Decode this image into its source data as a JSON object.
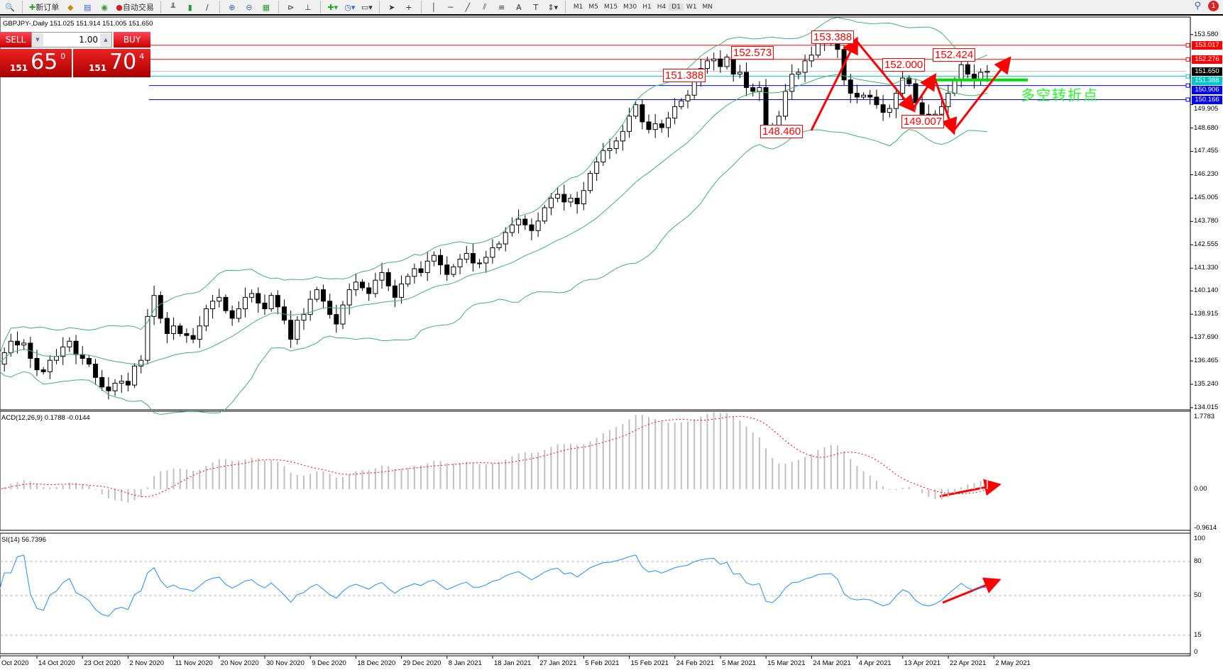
{
  "toolbar": {
    "new_order": "新订单",
    "auto_trading": "自动交易",
    "timeframes": [
      "M1",
      "M5",
      "M15",
      "M30",
      "H1",
      "H4",
      "D1",
      "W1",
      "MN"
    ],
    "active_timeframe": "D1",
    "notification_count": "1"
  },
  "chart_info": {
    "text": "GBPJPY-,Daily  151.025 151.914 151.005 151.650"
  },
  "one_click": {
    "sell_label": "SELL",
    "buy_label": "BUY",
    "lot": "1.00",
    "sell_big": "151",
    "sell_main": "65",
    "sell_sup": "0",
    "buy_big": "151",
    "buy_main": "70",
    "buy_sup": "4"
  },
  "price_axis": [
    "153.580",
    "149.905",
    "148.680",
    "147.455",
    "146.230",
    "145.005",
    "143.780",
    "142.555",
    "141.330",
    "140.140",
    "138.915",
    "137.690",
    "136.465",
    "135.240",
    "134.015"
  ],
  "price_lines": [
    {
      "price": 153.017,
      "label": "153.017",
      "color": "#ff0000"
    },
    {
      "price": 152.276,
      "label": "152.276",
      "color": "#ff0000"
    },
    {
      "price": 151.65,
      "label": "151.650",
      "color": "#000000",
      "line": "#c0c0c0"
    },
    {
      "price": 151.388,
      "label": "151.388",
      "color": "#00c8c8"
    },
    {
      "price": 150.906,
      "label": "150.906",
      "color": "#0000ff"
    },
    {
      "price": 150.166,
      "label": "150.166",
      "color": "#0000ff"
    }
  ],
  "annotations": [
    "153.388",
    "152.573",
    "151.388",
    "148.460",
    "152.000",
    "152.424",
    "149.007"
  ],
  "annotation_text": "多空转折点",
  "colors": {
    "bands": "#3cb371",
    "arrow": "#ff0000",
    "support": "#00e000",
    "macd_hist": "#c0c0c0",
    "macd_signal": "#ff0000",
    "rsi": "#1e90ff"
  },
  "macd": {
    "label": "ACD(12,26,9) 0.1788 -0.0144",
    "axis": [
      "1.7783",
      "0.00",
      "-0.9614"
    ]
  },
  "rsi": {
    "label": "SI(14) 56.7396",
    "axis": [
      "100",
      "80",
      "50",
      "15",
      "0"
    ]
  },
  "dates": [
    "Oct 2020",
    "14 Oct 2020",
    "23 Oct 2020",
    "2 Nov 2020",
    "11 Nov 2020",
    "20 Nov 2020",
    "30 Nov 2020",
    "9 Dec 2020",
    "18 Dec 2020",
    "29 Dec 2020",
    "8 Jan 2021",
    "18 Jan 2021",
    "27 Jan 2021",
    "5 Feb 2021",
    "15 Feb 2021",
    "24 Feb 2021",
    "5 Mar 2021",
    "15 Mar 2021",
    "24 Mar 2021",
    "4 Apr 2021",
    "13 Apr 2021",
    "22 Apr 2021",
    "2 May 2021"
  ],
  "chart_data": {
    "type": "candlestick",
    "symbol": "GBPJPY",
    "timeframe": "Daily",
    "ylim": [
      134.015,
      153.58
    ],
    "closes": [
      136.3,
      136.9,
      137.5,
      137.3,
      137.4,
      136.6,
      136.0,
      135.9,
      136.5,
      136.7,
      137.2,
      137.5,
      136.8,
      136.6,
      136.3,
      135.6,
      135.1,
      134.9,
      135.3,
      135.4,
      135.2,
      136.2,
      136.5,
      138.8,
      139.9,
      138.7,
      137.9,
      138.3,
      137.9,
      137.8,
      137.6,
      138.3,
      139.2,
      139.6,
      139.8,
      139.1,
      138.7,
      139.2,
      139.8,
      140.0,
      139.5,
      139.2,
      139.9,
      139.3,
      138.6,
      137.6,
      138.6,
      138.9,
      139.7,
      140.2,
      139.6,
      138.9,
      138.4,
      139.4,
      140.2,
      140.6,
      140.3,
      140.0,
      140.7,
      141.1,
      140.4,
      139.8,
      140.5,
      140.9,
      141.3,
      141.1,
      141.7,
      142.0,
      141.5,
      141.0,
      141.4,
      141.8,
      142.1,
      141.6,
      141.6,
      141.9,
      142.4,
      142.6,
      143.2,
      143.6,
      143.9,
      143.6,
      143.3,
      143.8,
      144.5,
      145.0,
      145.2,
      144.8,
      145.0,
      144.7,
      145.4,
      146.3,
      146.9,
      147.5,
      147.6,
      148.0,
      148.5,
      149.3,
      149.9,
      149.0,
      148.6,
      148.9,
      148.7,
      149.2,
      149.8,
      150.1,
      150.4,
      151.3,
      151.8,
      152.2,
      152.3,
      151.9,
      152.4,
      151.5,
      151.6,
      150.8,
      150.6,
      150.8,
      148.8,
      148.6,
      149.3,
      150.6,
      151.5,
      151.6,
      152.2,
      152.5,
      153.1,
      153.2,
      153.3,
      152.8,
      151.2,
      150.5,
      150.3,
      150.4,
      150.3,
      149.9,
      149.5,
      149.7,
      150.5,
      151.3,
      151.0,
      150.0,
      149.4,
      149.2,
      149.4,
      149.8,
      150.5,
      151.2,
      152.0,
      151.5,
      151.2,
      151.6,
      151.65
    ]
  }
}
